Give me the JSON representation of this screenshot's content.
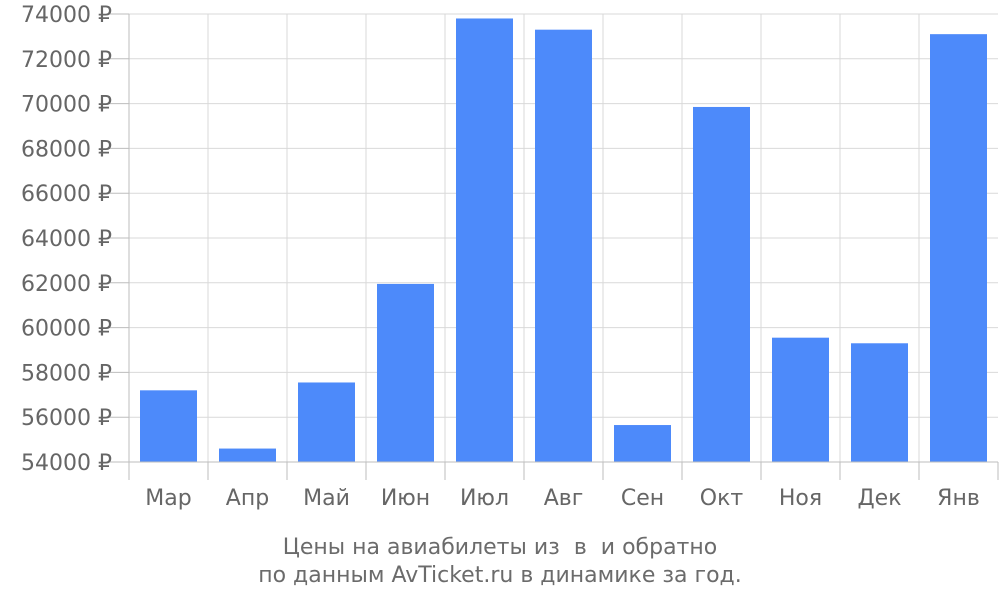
{
  "chart_data": {
    "type": "bar",
    "categories": [
      "Мар",
      "Апр",
      "Май",
      "Июн",
      "Июл",
      "Авг",
      "Сен",
      "Окт",
      "Ноя",
      "Дек",
      "Янв"
    ],
    "values": [
      57200,
      54600,
      57550,
      61950,
      73800,
      73300,
      55650,
      69850,
      59550,
      59300,
      73100
    ],
    "ylim": [
      54000,
      74000
    ],
    "yticks": [
      54000,
      56000,
      58000,
      60000,
      62000,
      64000,
      66000,
      68000,
      70000,
      72000,
      74000
    ],
    "ytick_labels": [
      "54000 ₽",
      "56000 ₽",
      "58000 ₽",
      "60000 ₽",
      "62000 ₽",
      "64000 ₽",
      "66000 ₽",
      "68000 ₽",
      "70000 ₽",
      "72000 ₽",
      "74000 ₽"
    ],
    "grid": true,
    "bar_color": "#4d8afa",
    "grid_color": "#d9d9d9",
    "axis_color": "#bdbdbd"
  },
  "caption": {
    "line1": "Цены на авиабилеты из  в  и обратно",
    "line2": "по данным AvTicket.ru в динамике за год."
  }
}
